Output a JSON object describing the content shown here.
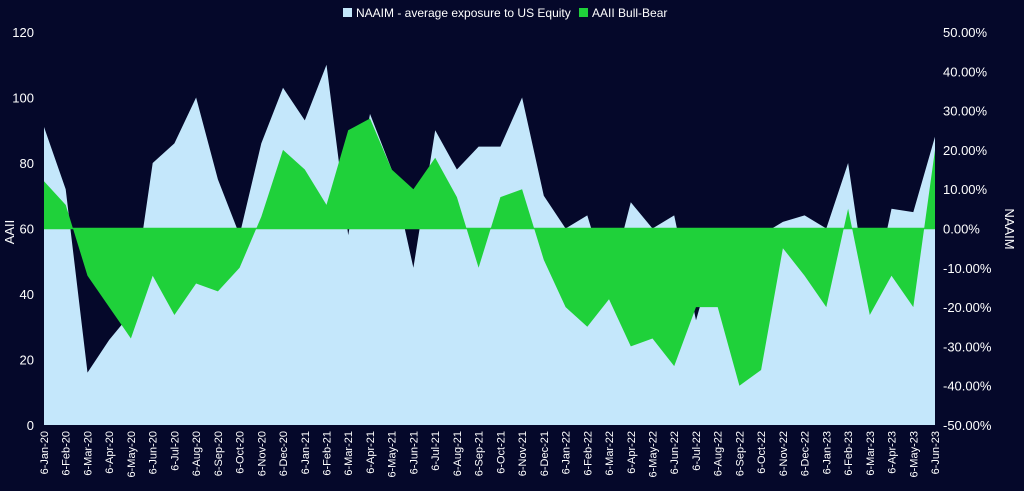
{
  "chart_data": {
    "type": "area",
    "colors": {
      "background": "#05082a",
      "naaim": "#c4e7fb",
      "aaii": "#1fd13a"
    },
    "legend": {
      "placement": "top-center",
      "items": [
        {
          "label": "NAAIM - average exposure to US Equity",
          "color": "#c4e7fb"
        },
        {
          "label": "AAII Bull-Bear",
          "color": "#1fd13a"
        }
      ]
    },
    "y_left": {
      "label": "AAII",
      "ylim": [
        0,
        120
      ],
      "ticks": [
        "0",
        "20",
        "40",
        "60",
        "80",
        "100",
        "120"
      ],
      "tick_values": [
        0,
        20,
        40,
        60,
        80,
        100,
        120
      ]
    },
    "y_right": {
      "label": "NAAIM",
      "ylim": [
        -0.5,
        0.5
      ],
      "ticks": [
        "-50.00%",
        "-40.00%",
        "-30.00%",
        "-20.00%",
        "-10.00%",
        "0.00%",
        "10.00%",
        "20.00%",
        "30.00%",
        "40.00%",
        "50.00%"
      ],
      "tick_values": [
        -0.5,
        -0.4,
        -0.3,
        -0.2,
        -0.1,
        0,
        0.1,
        0.2,
        0.3,
        0.4,
        0.5
      ]
    },
    "x_labels": [
      "6-Jan-20",
      "6-Feb-20",
      "6-Mar-20",
      "6-Apr-20",
      "6-May-20",
      "6-Jun-20",
      "6-Jul-20",
      "6-Aug-20",
      "6-Sep-20",
      "6-Oct-20",
      "6-Nov-20",
      "6-Dec-20",
      "6-Jan-21",
      "6-Feb-21",
      "6-Mar-21",
      "6-Apr-21",
      "6-May-21",
      "6-Jun-21",
      "6-Jul-21",
      "6-Aug-21",
      "6-Sep-21",
      "6-Oct-21",
      "6-Nov-21",
      "6-Dec-21",
      "6-Jan-22",
      "6-Feb-22",
      "6-Mar-22",
      "6-Apr-22",
      "6-May-22",
      "6-Jun-22",
      "6-Jul-22",
      "6-Aug-22",
      "6-Sep-22",
      "6-Oct-22",
      "6-Nov-22",
      "6-Dec-22",
      "6-Jan-23",
      "6-Feb-23",
      "6-Mar-23",
      "6-Apr-23",
      "6-May-23",
      "6-Jun-23"
    ],
    "series": [
      {
        "name": "NAAIM - average exposure to US Equity",
        "axis": "left",
        "monthly_values": [
          91,
          72,
          16,
          26,
          34,
          80,
          86,
          100,
          75,
          58,
          86,
          103,
          93,
          110,
          58,
          95,
          78,
          48,
          90,
          78,
          85,
          85,
          100,
          70,
          60,
          64,
          42,
          68,
          60,
          64,
          32,
          55,
          28,
          58,
          62,
          64,
          60,
          80,
          35,
          66,
          65,
          88
        ]
      },
      {
        "name": "AAII Bull-Bear",
        "axis": "right",
        "monthly_values": [
          0.12,
          0.06,
          -0.12,
          -0.2,
          -0.28,
          -0.12,
          -0.22,
          -0.14,
          -0.16,
          -0.1,
          0.03,
          0.2,
          0.15,
          0.06,
          0.25,
          0.28,
          0.15,
          0.1,
          0.18,
          0.08,
          -0.1,
          0.08,
          0.1,
          -0.08,
          -0.2,
          -0.25,
          -0.18,
          -0.3,
          -0.28,
          -0.35,
          -0.2,
          -0.2,
          -0.4,
          -0.36,
          -0.05,
          -0.12,
          -0.2,
          0.05,
          -0.22,
          -0.12,
          -0.2,
          0.2
        ]
      }
    ]
  }
}
